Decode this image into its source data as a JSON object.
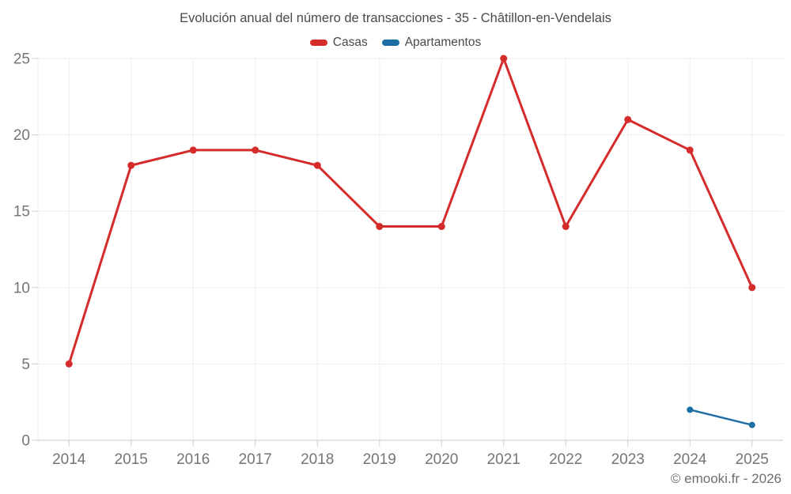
{
  "footer": {
    "copyright": "© emooki.fr - 2026"
  },
  "theme": {
    "background": "#ffffff",
    "grid_line_color": "#ededed",
    "axis_line_color": "#c9c9c9",
    "tick_color": "#cfcfcf",
    "axis_label_color": "#757575",
    "title_color": "#4a4a4a",
    "copyright_color": "#6e6e6e"
  },
  "chart_data": {
    "type": "line",
    "title": "Evolución anual del número de transacciones - 35 - Châtillon-en-Vendelais",
    "x": [
      2014,
      2015,
      2016,
      2017,
      2018,
      2019,
      2020,
      2021,
      2022,
      2023,
      2024,
      2025
    ],
    "series": [
      {
        "name": "Casas",
        "color": "#d62b2b",
        "values": [
          5,
          18,
          19,
          19,
          18,
          14,
          14,
          25,
          14,
          21,
          19,
          10
        ]
      },
      {
        "name": "Apartamentos",
        "color": "#1c6ea4",
        "values": [
          null,
          null,
          null,
          null,
          null,
          null,
          null,
          null,
          null,
          null,
          2,
          1
        ]
      }
    ],
    "xlabel": "",
    "ylabel": "",
    "ylim": [
      0,
      25
    ],
    "yticks": [
      0,
      5,
      10,
      15,
      20,
      25
    ],
    "grid": true,
    "legend_position": "top",
    "line_width": 3,
    "point_radius": 4.5
  }
}
